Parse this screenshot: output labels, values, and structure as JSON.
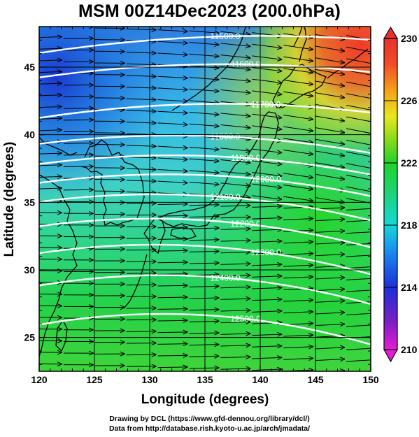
{
  "title": "MSM 00Z14Dec2023 (200.0hPa)",
  "x_axis": {
    "label": "Longitude (degrees)",
    "range": [
      120,
      150
    ],
    "ticks": [
      "120",
      "125",
      "130",
      "135",
      "140",
      "145",
      "150"
    ]
  },
  "y_axis": {
    "label": "Latitude  (degrees)",
    "range": [
      22.5,
      48
    ],
    "ticks": [
      "25",
      "30",
      "35",
      "40",
      "45"
    ]
  },
  "colorbar": {
    "range": [
      210,
      230
    ],
    "ticks": [
      "210",
      "214",
      "218",
      "222",
      "226",
      "230"
    ],
    "colors": [
      "#e81ad6",
      "#7a1fc4",
      "#1c2fd9",
      "#1a8ff0",
      "#14d9d6",
      "#1bd47a",
      "#21d32a",
      "#8fdb1a",
      "#e8e81c",
      "#f5a21a",
      "#f24a2a",
      "#e8302a"
    ]
  },
  "contours": [
    {
      "label": "11500.0",
      "lat_west": 46.0,
      "lat_east": 47.0
    },
    {
      "label": "11600.0",
      "lat_west": 44.2,
      "lat_east": 44.6
    },
    {
      "label": "11700.0",
      "lat_west": 41.2,
      "lat_east": 41.6
    },
    {
      "label": "11800.0",
      "lat_west": 39.3,
      "lat_east": 38.6
    },
    {
      "label": "11900.0",
      "lat_west": 37.8,
      "lat_east": 37.0
    },
    {
      "label": "12000.0",
      "lat_west": 36.4,
      "lat_east": 35.4
    },
    {
      "label": "12100.0",
      "lat_west": 35.0,
      "lat_east": 33.6
    },
    {
      "label": "12200.0",
      "lat_west": 33.2,
      "lat_east": 31.6
    },
    {
      "label": "12300.0",
      "lat_west": 31.2,
      "lat_east": 29.6
    },
    {
      "label": "12400.0",
      "lat_west": 28.8,
      "lat_east": 27.4
    },
    {
      "label": "12500.0",
      "lat_west": 25.9,
      "lat_east": 24.4
    }
  ],
  "footer": {
    "line1": "Drawing by DCL (https://www.gfd-dennou.org/library/dcl/)",
    "line2": "Data from http://database.rish.kyoto-u.ac.jp/arch/jmadata/"
  }
}
